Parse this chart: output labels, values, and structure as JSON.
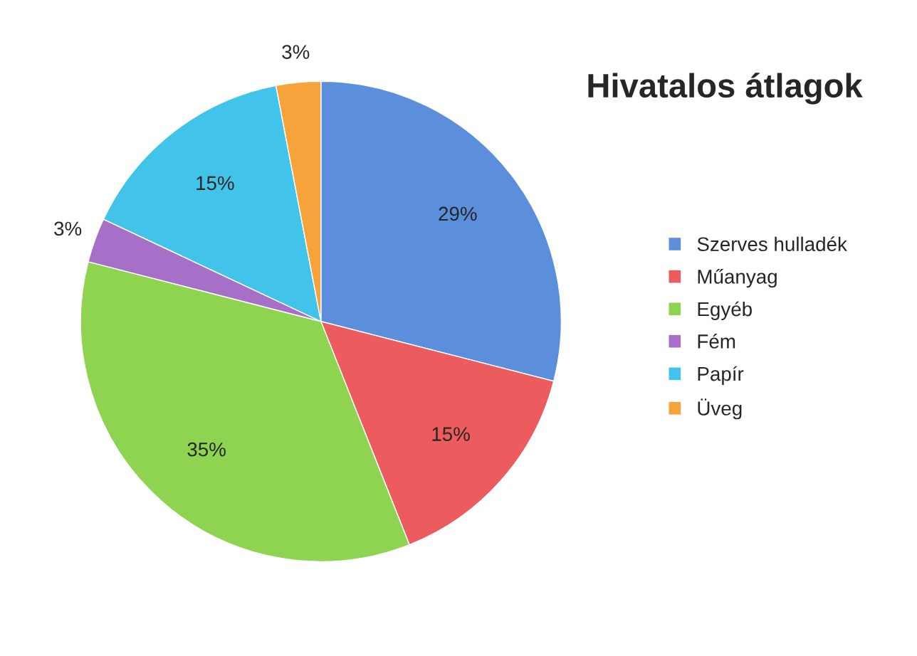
{
  "chart_data": {
    "type": "pie",
    "title": "Hivatalos átlagok",
    "categories": [
      "Szerves hulladék",
      "Műanyag",
      "Egyéb",
      "Fém",
      "Papír",
      "Üveg"
    ],
    "values": [
      29,
      15,
      35,
      3,
      15,
      3
    ],
    "colors": [
      "#5b8fdb",
      "#ec5b5d",
      "#8fd451",
      "#a66fc8",
      "#42c4ea",
      "#f6a33b"
    ],
    "value_labels": [
      "29%",
      "15%",
      "35%",
      "3%",
      "15%",
      "3%"
    ],
    "legend": "right"
  }
}
